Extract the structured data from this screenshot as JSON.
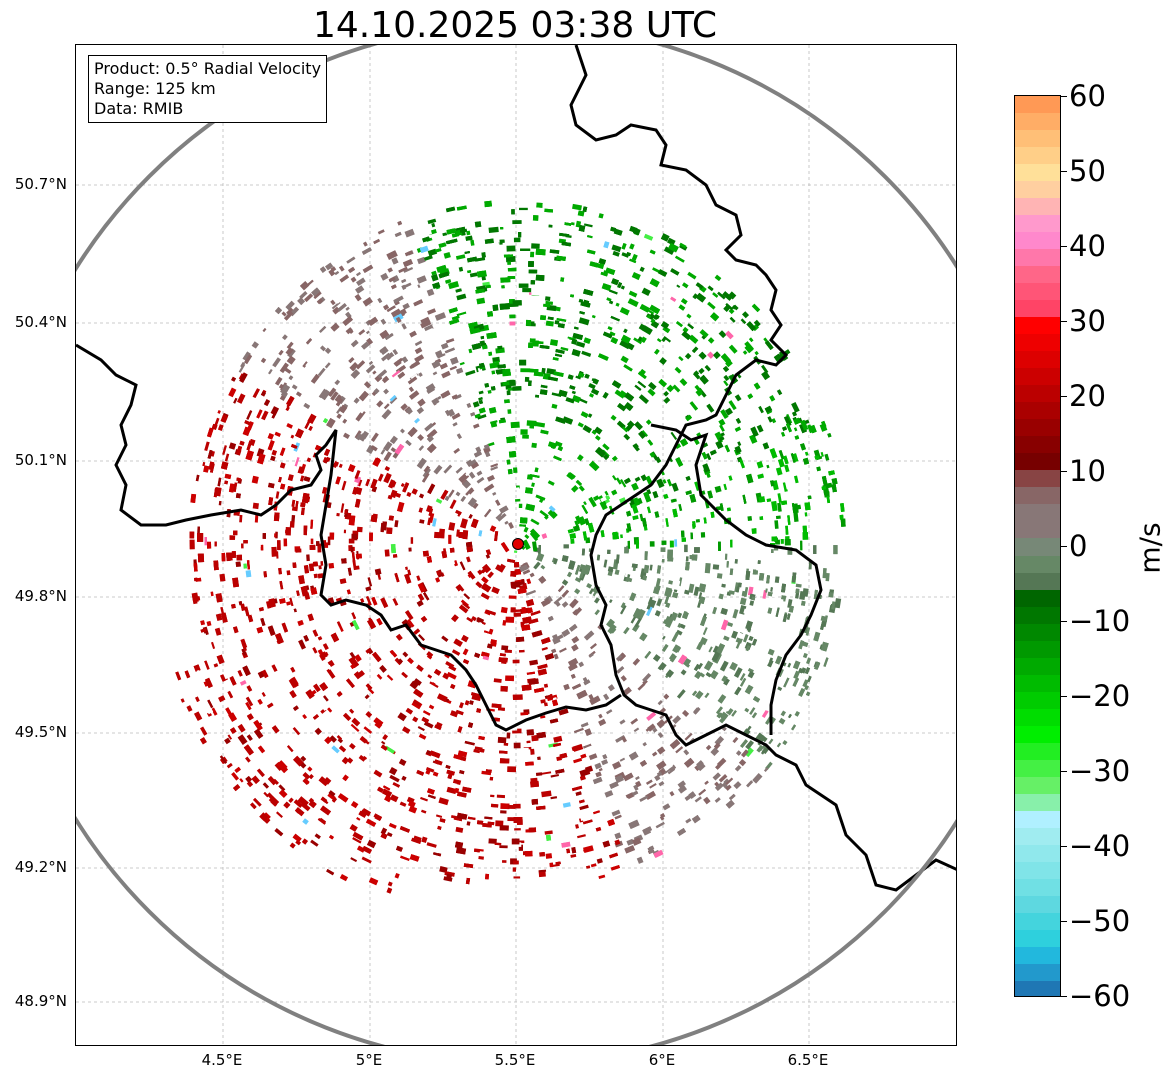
{
  "title": "14.10.2025 03:38 UTC",
  "info": {
    "product": "Product: 0.5° Radial Velocity",
    "range": "Range: 125 km",
    "data_source": "Data: RMIB"
  },
  "axes": {
    "lat_labels": [
      "50.7°N",
      "50.4°N",
      "50.1°N",
      "49.8°N",
      "49.5°N",
      "49.2°N",
      "48.9°N"
    ],
    "lon_labels": [
      "4.5°E",
      "5°E",
      "5.5°E",
      "6°E",
      "6.5°E"
    ]
  },
  "radar": {
    "site_marker_color": "#e00000",
    "range_ring_color": "#808080",
    "approaching_color": "#c00000",
    "receding_color": "#00a000"
  },
  "colorbar": {
    "unit": "m/s",
    "ticks": [
      "60",
      "50",
      "40",
      "30",
      "20",
      "10",
      "0",
      "−10",
      "−20",
      "−30",
      "−40",
      "−50",
      "−60"
    ],
    "colors_top_to_bottom": [
      "#ff9955",
      "#ffad66",
      "#ffbf77",
      "#ffcf88",
      "#ffe099",
      "#ffcfa0",
      "#ffb4b4",
      "#ff99cc",
      "#ff88cc",
      "#ff77aa",
      "#ff6688",
      "#ff5577",
      "#ff4466",
      "#ff0000",
      "#ee0000",
      "#dd0000",
      "#cc0000",
      "#bb0000",
      "#aa0000",
      "#990000",
      "#880000",
      "#770000",
      "#884444",
      "#886666",
      "#887777",
      "#887777",
      "#778877",
      "#668866",
      "#557755",
      "#006600",
      "#007700",
      "#008800",
      "#009900",
      "#00aa00",
      "#00bb00",
      "#00cc00",
      "#00dd00",
      "#00ee00",
      "#22ee22",
      "#44f044",
      "#66f066",
      "#88f0aa",
      "#b0f0ff",
      "#a0ecf0",
      "#90e8ec",
      "#80e4e8",
      "#70e0e4",
      "#5ed8e0",
      "#44d4dd",
      "#2ed0dd",
      "#22b8dd",
      "#2299cc",
      "#1f77b4"
    ]
  }
}
